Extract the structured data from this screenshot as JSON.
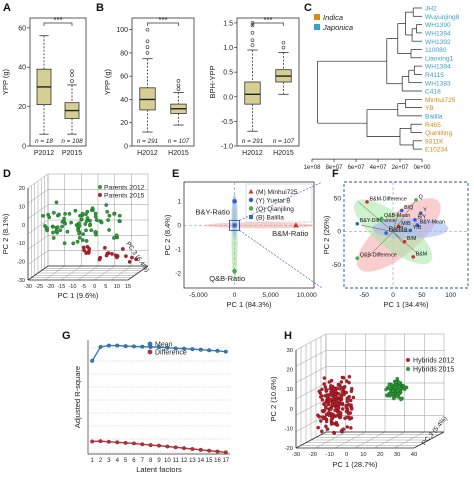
{
  "panels": {
    "A": {
      "label": "A",
      "ylabel": "YPP (g)",
      "yticks": [
        "0",
        "20",
        "40",
        "60"
      ],
      "categories": [
        "P2012",
        "P2015"
      ],
      "n_labels": [
        "n = 18",
        "n = 108"
      ],
      "significance": "***"
    },
    "B": {
      "label": "B",
      "left": {
        "ylabel": "YPP (g)",
        "yticks": [
          "0",
          "20",
          "40",
          "60",
          "80",
          "100"
        ],
        "categories": [
          "H2012",
          "H2015"
        ],
        "n_labels": [
          "n = 291",
          "n = 107"
        ],
        "significance": "***"
      },
      "right": {
        "ylabel": "BPH-YPP",
        "yticks": [
          "-1.0",
          "-0.5",
          "0.0",
          "0.5",
          "1.0",
          "1.5"
        ],
        "categories": [
          "H2012",
          "H2015"
        ],
        "n_labels": [
          "n = 291",
          "n = 107"
        ],
        "significance": "***"
      }
    },
    "C": {
      "label": "C",
      "legend": [
        {
          "name": "Indica",
          "color": "#d48b1a"
        },
        {
          "name": "Japonica",
          "color": "#3a9fc4"
        }
      ],
      "leaves": [
        {
          "name": "JH2",
          "group": "japonica"
        },
        {
          "name": "Wuyunjing8",
          "group": "japonica"
        },
        {
          "name": "WH1390",
          "group": "japonica"
        },
        {
          "name": "WH1394",
          "group": "japonica"
        },
        {
          "name": "WH1392",
          "group": "japonica"
        },
        {
          "name": "110080",
          "group": "japonica"
        },
        {
          "name": "Liaoxing1",
          "group": "japonica"
        },
        {
          "name": "WH1384",
          "group": "japonica"
        },
        {
          "name": "R4115",
          "group": "japonica"
        },
        {
          "name": "WH1383",
          "group": "japonica"
        },
        {
          "name": "C418",
          "group": "japonica"
        },
        {
          "name": "Minhui725",
          "group": "indica"
        },
        {
          "name": "YB",
          "group": "indica"
        },
        {
          "name": "Balilla",
          "group": "japonica"
        },
        {
          "name": "R465",
          "group": "indica"
        },
        {
          "name": "Qianliling",
          "group": "indica"
        },
        {
          "name": "9311K",
          "group": "indica"
        },
        {
          "name": "E10234",
          "group": "indica"
        }
      ],
      "xticks": [
        "1e+08",
        "8e+07",
        "6e+07",
        "4e+07",
        "2e+07",
        "0e+00"
      ]
    },
    "D": {
      "label": "D",
      "xlabel": "PC 1 (9.6%)",
      "ylabel": "PC 2 (8.1%)",
      "zlabel": "PC 3 (6.4%)",
      "xticks": [
        "-30",
        "-25",
        "-20",
        "-15",
        "-10",
        "-5",
        "0",
        "5",
        "10",
        "15"
      ],
      "yticks": [
        "-30",
        "-20",
        "-10",
        "0",
        "10",
        "20"
      ],
      "legend": [
        {
          "name": "Parents 2012",
          "color": "#2e9a3a"
        },
        {
          "name": "Parents 2015",
          "color": "#b5202c"
        }
      ]
    },
    "E": {
      "label": "E",
      "xlabel": "PC 1 (84.3%)",
      "ylabel": "PC 2 (8.4%)",
      "xticks": [
        "-5,000",
        "0",
        "5,000",
        "10,000"
      ],
      "yticks": [
        "-2",
        "-1",
        "0",
        "1"
      ],
      "legend": [
        {
          "name": "(M)  Minhui725",
          "color": "#d03030",
          "shape": "tri"
        },
        {
          "name": "(Y)  Yuetai B",
          "color": "#3060c8",
          "shape": "dot"
        },
        {
          "name": "(Q)  Qianjiling",
          "color": "#40b040",
          "shape": "dot"
        },
        {
          "name": "(B)  Balilla",
          "color": "#3060c8",
          "shape": "sq"
        }
      ],
      "annotations": [
        "B&Y-Ratio",
        "B&M-Ratio",
        "Q&B-Ratio"
      ]
    },
    "F": {
      "label": "F",
      "xlabel": "PC 1 (34.4%)",
      "ylabel": "PC 2 (26%)",
      "xticks": [
        "-50",
        "0",
        "50",
        "100"
      ],
      "yticks": [
        "-50",
        "0",
        "50"
      ],
      "annotations": [
        "B&M-Difference",
        "B/Q",
        "Q",
        "B&Y-Difference",
        "M/B",
        "B&Y-Mean",
        "B/Y",
        "Y/B",
        "Balilla",
        "Q&B-Difference",
        "B/M",
        "B&M",
        "Q&B-Mean",
        "Y"
      ]
    },
    "G": {
      "label": "G",
      "xlabel": "Latent factors",
      "ylabel": "Adjusted R-square",
      "xticks": [
        "1",
        "2",
        "3",
        "4",
        "5",
        "6",
        "7",
        "8",
        "9",
        "10",
        "11",
        "12",
        "13",
        "14",
        "15",
        "16",
        "17"
      ],
      "legend": [
        {
          "name": "Mean",
          "color": "#2c80c4"
        },
        {
          "name": "Difference",
          "color": "#c0303a"
        }
      ]
    },
    "H": {
      "label": "H",
      "xlabel": "PC 1 (28.7%)",
      "ylabel": "PC 2 (10.6%)",
      "zlabel": "PC 3 (5.4%)",
      "xticks": [
        "-30",
        "-20",
        "-10",
        "0",
        "10",
        "20",
        "30",
        "40"
      ],
      "yticks": [
        "-20",
        "-10",
        "0",
        "10",
        "20",
        "30"
      ],
      "legend": [
        {
          "name": "Hybrids 2012",
          "color": "#b5202c"
        },
        {
          "name": "Hybrids 2015",
          "color": "#2e9a3a"
        }
      ]
    }
  },
  "chart_data": [
    {
      "type": "box",
      "panel": "A",
      "categories": [
        "P2012",
        "P2015"
      ],
      "ylim": [
        0,
        65
      ],
      "boxes": [
        {
          "min": 6,
          "q1": 21,
          "median": 30,
          "q3": 39,
          "max": 56,
          "outliers": []
        },
        {
          "min": 6,
          "q1": 14,
          "median": 18,
          "q3": 22,
          "max": 31,
          "outliers": [
            33,
            36,
            38
          ]
        }
      ],
      "fill": "#d6cf93"
    },
    {
      "type": "box",
      "panel": "B-left",
      "categories": [
        "H2012",
        "H2015"
      ],
      "ylim": [
        0,
        110
      ],
      "boxes": [
        {
          "min": 12,
          "q1": 31,
          "median": 40,
          "q3": 50,
          "max": 75,
          "outliers": [
            80,
            85,
            90,
            100
          ]
        },
        {
          "min": 18,
          "q1": 28,
          "median": 32,
          "q3": 36,
          "max": 46,
          "outliers": [
            49,
            52,
            56
          ]
        }
      ],
      "fill": "#d6cf93"
    },
    {
      "type": "box",
      "panel": "B-right",
      "categories": [
        "H2012",
        "H2015"
      ],
      "ylim": [
        -1.0,
        1.6
      ],
      "boxes": [
        {
          "min": -0.7,
          "q1": -0.15,
          "median": 0.05,
          "q3": 0.3,
          "max": 0.95,
          "outliers": [
            1.05,
            1.15,
            1.3,
            1.45,
            1.5
          ]
        },
        {
          "min": 0.05,
          "q1": 0.3,
          "median": 0.42,
          "q3": 0.55,
          "max": 0.9,
          "outliers": [
            1.0,
            1.1
          ]
        }
      ],
      "fill": "#d6cf93"
    },
    {
      "type": "line",
      "panel": "G",
      "x": [
        1,
        2,
        3,
        4,
        5,
        6,
        7,
        8,
        9,
        10,
        11,
        12,
        13,
        14,
        15,
        16,
        17
      ],
      "series": [
        {
          "name": "Mean",
          "values": [
            0.305,
            0.355,
            0.36,
            0.36,
            0.358,
            0.357,
            0.356,
            0.355,
            0.354,
            0.352,
            0.35,
            0.349,
            0.347,
            0.345,
            0.343,
            0.341,
            0.338
          ]
        },
        {
          "name": "Difference",
          "values": [
            0.015,
            0.016,
            0.014,
            0.012,
            0.01,
            0.008,
            0.005,
            0.002,
            0.0,
            -0.003,
            -0.006,
            -0.009,
            -0.012,
            -0.015,
            -0.018,
            -0.021,
            -0.024
          ]
        }
      ],
      "ylim": [
        -0.03,
        0.38
      ]
    }
  ]
}
